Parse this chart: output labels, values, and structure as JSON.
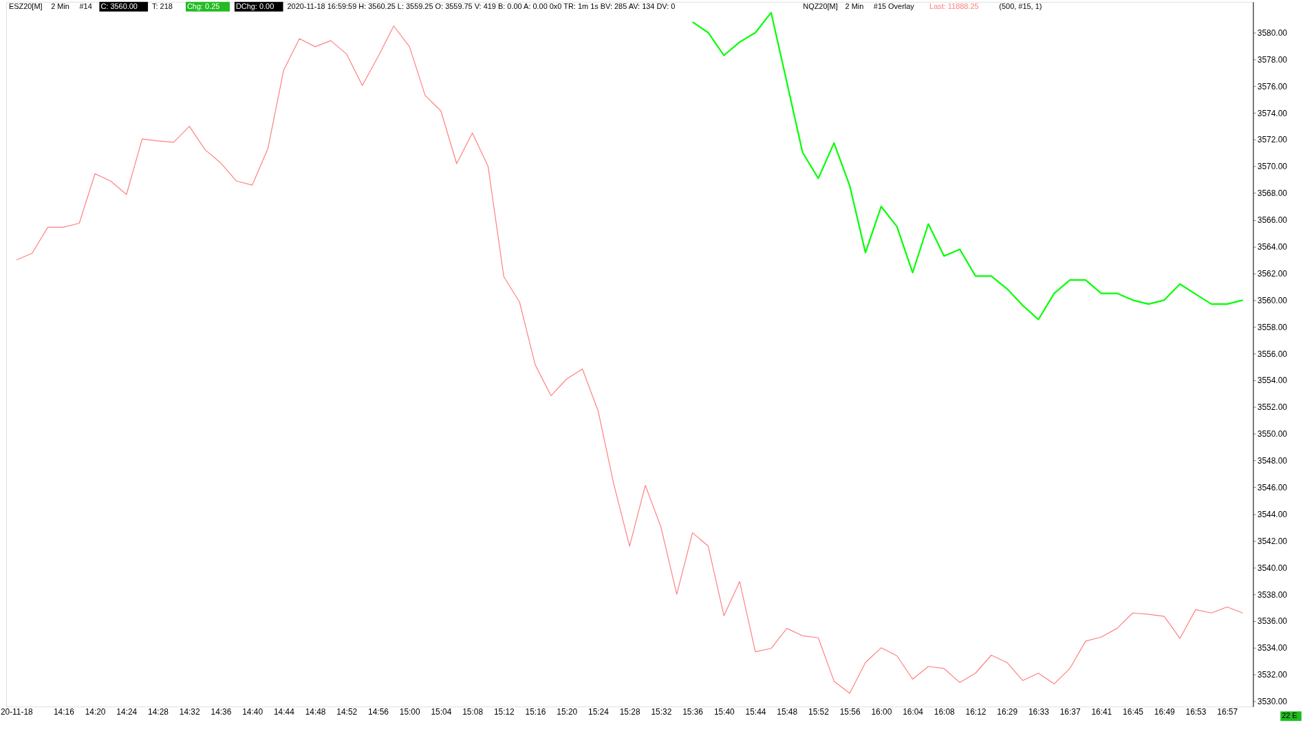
{
  "chart_data": {
    "type": "line",
    "categories": [
      "20-11-18",
      null,
      null,
      "14:16",
      null,
      "14:20",
      null,
      "14:24",
      null,
      "14:28",
      null,
      "14:32",
      null,
      "14:36",
      null,
      "14:40",
      null,
      "14:44",
      null,
      "14:48",
      null,
      "14:52",
      null,
      "14:56",
      null,
      "15:00",
      null,
      "15:04",
      null,
      "15:08",
      null,
      "15:12",
      null,
      "15:16",
      null,
      "15:20",
      null,
      "15:24",
      null,
      "15:28",
      null,
      "15:32",
      null,
      "15:36",
      null,
      "15:40",
      null,
      "15:44",
      null,
      "15:48",
      null,
      "15:52",
      null,
      "15:56",
      null,
      "16:00",
      null,
      "16:04",
      null,
      "16:08",
      null,
      "16:12",
      null,
      "16:29",
      null,
      "16:33",
      null,
      "16:37",
      null,
      "16:41",
      null,
      "16:45",
      null,
      "16:49",
      null,
      "16:53",
      null,
      "16:57",
      null
    ],
    "series": [
      {
        "color": "#ff7f7f",
        "values": [
          3563.0,
          3563.5,
          3565.45,
          3565.45,
          3565.75,
          3569.45,
          3568.9,
          3567.9,
          3572.05,
          3571.9,
          3571.8,
          3573.0,
          3571.25,
          3570.25,
          3568.9,
          3568.6,
          3571.35,
          3577.2,
          3579.55,
          3578.95,
          3579.4,
          3578.4,
          3576.05,
          3578.2,
          3580.5,
          3578.95,
          3575.3,
          3574.15,
          3570.2,
          3572.5,
          3570.0,
          3561.75,
          3559.85,
          3555.15,
          3552.85,
          3554.1,
          3554.85,
          3551.7,
          3546.2,
          3541.6,
          3546.15,
          3543.0,
          3538.0,
          3542.6,
          3541.6,
          3536.4,
          3538.95,
          3533.7,
          3533.95,
          3535.45,
          3534.9,
          3534.75,
          3531.5,
          3530.6,
          3532.9,
          3534.0,
          3533.4,
          3531.65,
          3532.6,
          3532.45,
          3531.4,
          3532.1,
          3533.45,
          3532.9,
          3531.55,
          3532.1,
          3531.3,
          3532.45,
          3534.5,
          3534.8,
          3535.45,
          3536.6,
          3536.5,
          3536.35,
          3534.7,
          3536.85,
          3536.6,
          3537.05,
          3536.6
        ]
      },
      {
        "color": "#00ff00",
        "values": [
          null,
          null,
          null,
          null,
          null,
          null,
          null,
          null,
          null,
          null,
          null,
          null,
          null,
          null,
          null,
          null,
          null,
          null,
          null,
          null,
          null,
          null,
          null,
          null,
          null,
          null,
          null,
          null,
          null,
          null,
          null,
          null,
          null,
          null,
          null,
          null,
          null,
          null,
          null,
          null,
          null,
          null,
          null,
          3580.8,
          3580.0,
          3578.3,
          3579.3,
          3580.0,
          3581.5,
          3576.3,
          3571.05,
          3569.1,
          3571.75,
          3568.55,
          3563.55,
          3567.0,
          3565.5,
          3562.05,
          3565.7,
          3563.3,
          3563.8,
          3561.8,
          3561.8,
          3560.85,
          3559.6,
          3558.55,
          3560.5,
          3561.5,
          3561.5,
          3560.5,
          3560.5,
          3560.0,
          3559.7,
          3560.0,
          3561.2,
          3560.45,
          3559.7,
          3559.7,
          3560.0
        ]
      }
    ],
    "ylim": [
      3529.6,
      3582.3
    ],
    "yticks": [
      {
        "value": 3530,
        "label": "3530.00"
      },
      {
        "value": 3532,
        "label": "3532.00"
      },
      {
        "value": 3534,
        "label": "3534.00"
      },
      {
        "value": 3536,
        "label": "3536.00"
      },
      {
        "value": 3538,
        "label": "3538.00"
      },
      {
        "value": 3540,
        "label": "3540.00"
      },
      {
        "value": 3542,
        "label": "3542.00"
      },
      {
        "value": 3544,
        "label": "3544.00"
      },
      {
        "value": 3546,
        "label": "3546.00"
      },
      {
        "value": 3548,
        "label": "3548.00"
      },
      {
        "value": 3550,
        "label": "3550.00"
      },
      {
        "value": 3552,
        "label": "3552.00"
      },
      {
        "value": 3554,
        "label": "3554.00"
      },
      {
        "value": 3556,
        "label": "3556.00"
      },
      {
        "value": 3558,
        "label": "3558.00"
      },
      {
        "value": 3560,
        "label": "3560.00"
      },
      {
        "value": 3562,
        "label": "3562.00"
      },
      {
        "value": 3564,
        "label": "3564.00"
      },
      {
        "value": 3566,
        "label": "3566.00"
      },
      {
        "value": 3568,
        "label": "3568.00"
      },
      {
        "value": 3570,
        "label": "3570.00"
      },
      {
        "value": 3572,
        "label": "3572.00"
      },
      {
        "value": 3574,
        "label": "3574.00"
      },
      {
        "value": 3576,
        "label": "3576.00"
      },
      {
        "value": 3578,
        "label": "3578.00"
      },
      {
        "value": 3580,
        "label": "3580.00"
      }
    ],
    "annotations": [
      "ESZ20[M]",
      "2 Min",
      "#14",
      "C: 3560.00",
      "T: 218",
      "Chg: 0.25",
      "DChg: 0.00",
      "2020-11-18 16:59:59 H: 3560.25 L: 3559.25 O: 3559.75 V: 419 B: 0.00 A: 0.00 0x0 TR: 1m 1s BV: 285 AV: 134 DV: 0",
      "NQZ20[M]",
      "2 Min",
      "#15 Overlay",
      "Last: 11888.25",
      "(500, #15, 1)",
      "22 E"
    ]
  }
}
